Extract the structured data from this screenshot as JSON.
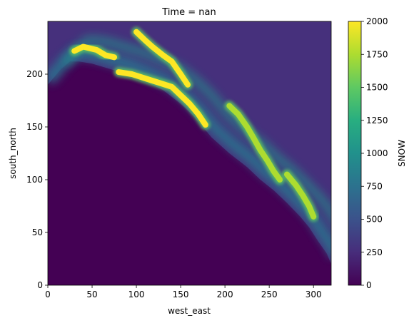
{
  "chart_data": {
    "type": "heatmap",
    "title": "Time = nan",
    "xlabel": "west_east",
    "ylabel": "south_north",
    "xlim": [
      0,
      320
    ],
    "ylim": [
      0,
      250
    ],
    "x_ticks": [
      0,
      50,
      100,
      150,
      200,
      250,
      300
    ],
    "y_ticks": [
      0,
      50,
      100,
      150,
      200
    ],
    "colorbar": {
      "label": "SNOW",
      "colormap": "viridis",
      "range": [
        0,
        2000
      ],
      "ticks": [
        0,
        250,
        500,
        750,
        1000,
        1250,
        1500,
        1750,
        2000
      ]
    },
    "colors": {
      "low": "#440154",
      "mid": "#21918c",
      "high": "#fde725"
    },
    "coastline": [
      [
        0,
        190
      ],
      [
        15,
        205
      ],
      [
        25,
        212
      ],
      [
        35,
        212
      ],
      [
        50,
        210
      ],
      [
        70,
        205
      ],
      [
        90,
        200
      ],
      [
        110,
        193
      ],
      [
        130,
        185
      ],
      [
        150,
        172
      ],
      [
        165,
        160
      ],
      [
        185,
        140
      ],
      [
        205,
        125
      ],
      [
        225,
        112
      ],
      [
        240,
        100
      ],
      [
        255,
        90
      ],
      [
        270,
        78
      ],
      [
        285,
        65
      ],
      [
        295,
        55
      ],
      [
        305,
        42
      ],
      [
        315,
        30
      ],
      [
        320,
        20
      ]
    ],
    "snow_bands": [
      {
        "x": [
          [
            30,
            222
          ],
          [
            40,
            226
          ],
          [
            55,
            223
          ],
          [
            65,
            218
          ],
          [
            75,
            216
          ]
        ],
        "value": 2000
      },
      {
        "x": [
          [
            80,
            202
          ],
          [
            95,
            200
          ],
          [
            110,
            196
          ],
          [
            125,
            192
          ],
          [
            140,
            188
          ],
          [
            150,
            180
          ],
          [
            160,
            172
          ],
          [
            170,
            162
          ],
          [
            178,
            152
          ]
        ],
        "value": 2000
      },
      {
        "x": [
          [
            100,
            240
          ],
          [
            110,
            232
          ],
          [
            118,
            226
          ],
          [
            130,
            218
          ],
          [
            140,
            212
          ],
          [
            150,
            200
          ],
          [
            158,
            190
          ]
        ],
        "value": 2000
      },
      {
        "x": [
          [
            205,
            170
          ],
          [
            215,
            162
          ],
          [
            225,
            150
          ],
          [
            232,
            140
          ],
          [
            240,
            128
          ],
          [
            248,
            118
          ],
          [
            255,
            108
          ],
          [
            262,
            100
          ]
        ],
        "value": 1800
      },
      {
        "x": [
          [
            270,
            105
          ],
          [
            280,
            95
          ],
          [
            288,
            85
          ],
          [
            295,
            75
          ],
          [
            300,
            65
          ]
        ],
        "value": 1500
      }
    ]
  }
}
